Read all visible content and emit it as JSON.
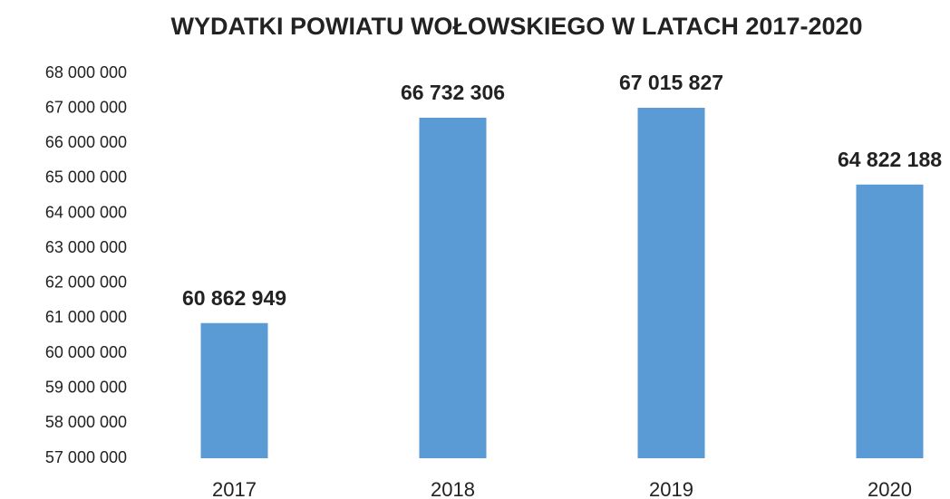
{
  "chart_data": {
    "type": "bar",
    "title": "WYDATKI POWIATU WOŁOWSKIEGO W LATACH 2017-2020",
    "categories": [
      "2017",
      "2018",
      "2019",
      "2020"
    ],
    "values": [
      60862949,
      66732306,
      67015827,
      64822188
    ],
    "value_labels": [
      "60 862 949",
      "66 732 306",
      "67 015 827",
      "64 822 188"
    ],
    "color": "#5b9bd5",
    "ylim": [
      57000000,
      68000000
    ],
    "yticks": [
      {
        "value": 57000000,
        "label": "57 000 000"
      },
      {
        "value": 58000000,
        "label": "58 000 000"
      },
      {
        "value": 59000000,
        "label": "59 000 000"
      },
      {
        "value": 60000000,
        "label": "60 000 000"
      },
      {
        "value": 61000000,
        "label": "61 000 000"
      },
      {
        "value": 62000000,
        "label": "62 000 000"
      },
      {
        "value": 63000000,
        "label": "63 000 000"
      },
      {
        "value": 64000000,
        "label": "64 000 000"
      },
      {
        "value": 65000000,
        "label": "65 000 000"
      },
      {
        "value": 66000000,
        "label": "66 000 000"
      },
      {
        "value": 67000000,
        "label": "67 000 000"
      },
      {
        "value": 68000000,
        "label": "68 000 000"
      }
    ],
    "grid": false
  }
}
